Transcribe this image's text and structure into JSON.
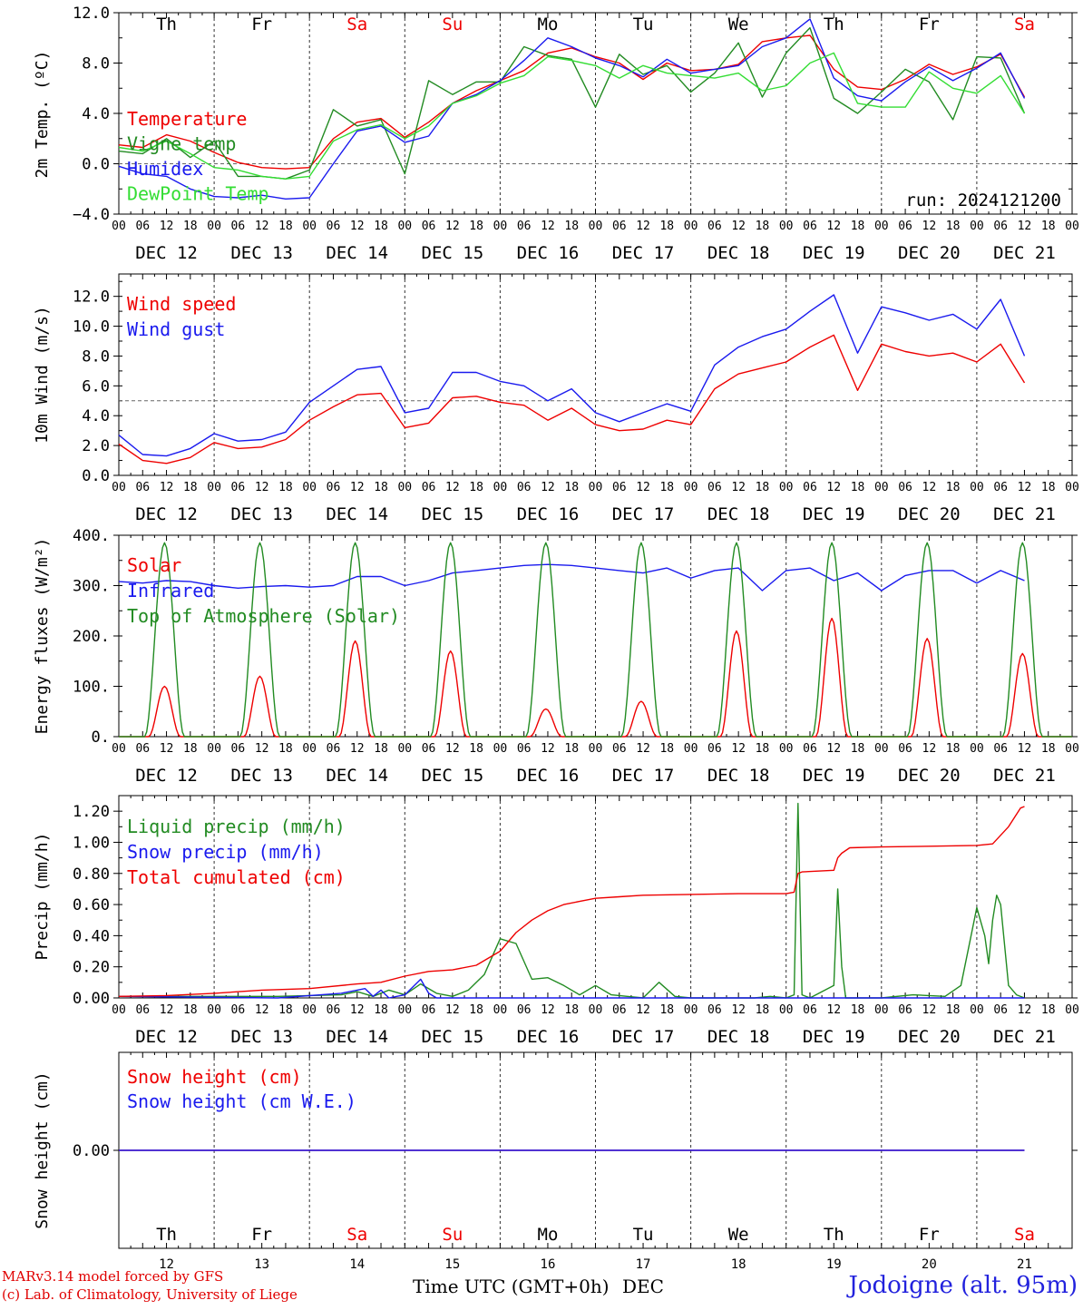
{
  "chart_data": [
    {
      "type": "line",
      "ylabel": "2m Temp. (ºC)",
      "ylim": [
        -4.0,
        12.0
      ],
      "yticks": [
        "-4.0",
        "0.0",
        "4.0",
        "8.0",
        "12.0"
      ],
      "reference_line": 0.0,
      "annotation": "run: 2024121200",
      "x_unit": "hours since DEC 12 00 UTC",
      "series": [
        {
          "name": "Temperature",
          "color": "#ee0000",
          "x": [
            0,
            6,
            12,
            18,
            24,
            30,
            36,
            42,
            48,
            54,
            60,
            66,
            72,
            78,
            84,
            90,
            96,
            102,
            108,
            114,
            120,
            126,
            132,
            138,
            144,
            150,
            156,
            162,
            168,
            174,
            180,
            186,
            192,
            198,
            204,
            210,
            216,
            222,
            228
          ],
          "y": [
            1.5,
            1.3,
            2.3,
            1.8,
            0.9,
            0.1,
            -0.3,
            -0.4,
            -0.3,
            2.0,
            3.3,
            3.6,
            2.1,
            3.3,
            4.8,
            5.8,
            6.6,
            7.4,
            8.8,
            9.2,
            8.5,
            8.0,
            6.7,
            8.0,
            7.4,
            7.5,
            7.9,
            9.7,
            10.0,
            10.2,
            7.5,
            6.1,
            5.9,
            6.7,
            7.9,
            7.1,
            7.7,
            8.7,
            5.3
          ]
        },
        {
          "name": "Vigne temp",
          "color": "#228b22",
          "x": [
            0,
            6,
            12,
            18,
            24,
            30,
            36,
            42,
            48,
            54,
            60,
            66,
            72,
            78,
            84,
            90,
            96,
            102,
            108,
            114,
            120,
            126,
            132,
            138,
            144,
            150,
            156,
            162,
            168,
            174,
            180,
            186,
            192,
            198,
            204,
            210,
            216,
            222,
            228
          ],
          "y": [
            1.0,
            0.8,
            2.0,
            0.5,
            1.8,
            -1.0,
            -1.0,
            -1.2,
            -0.5,
            4.3,
            3.0,
            3.5,
            -0.8,
            6.6,
            5.5,
            6.5,
            6.5,
            9.3,
            8.6,
            8.3,
            4.5,
            8.7,
            7.1,
            7.8,
            5.7,
            7.2,
            9.6,
            5.3,
            8.8,
            10.8,
            5.2,
            4.0,
            5.7,
            7.5,
            6.5,
            3.5,
            8.5,
            8.4,
            4.0
          ]
        },
        {
          "name": "Humidex",
          "color": "#1a1aee",
          "x": [
            0,
            6,
            12,
            18,
            24,
            30,
            36,
            42,
            48,
            54,
            60,
            66,
            72,
            78,
            84,
            90,
            96,
            102,
            108,
            114,
            120,
            126,
            132,
            138,
            144,
            150,
            156,
            162,
            168,
            174,
            180,
            186,
            192,
            198,
            204,
            210,
            216,
            222,
            228
          ],
          "y": [
            -0.2,
            -0.8,
            -1.0,
            -2.0,
            -2.6,
            -2.7,
            -2.5,
            -2.8,
            -2.7,
            0.0,
            2.6,
            3.0,
            1.7,
            2.2,
            4.8,
            5.5,
            6.6,
            8.2,
            10.0,
            9.3,
            8.4,
            7.8,
            6.9,
            8.3,
            7.2,
            7.5,
            7.8,
            9.3,
            10.0,
            11.5,
            6.8,
            5.4,
            5.0,
            6.5,
            7.7,
            6.6,
            7.6,
            8.8,
            5.2
          ]
        },
        {
          "name": "DewPoint Temp",
          "color": "#33dd33",
          "x": [
            0,
            6,
            12,
            18,
            24,
            30,
            36,
            42,
            48,
            54,
            60,
            66,
            72,
            78,
            84,
            90,
            96,
            102,
            108,
            114,
            120,
            126,
            132,
            138,
            144,
            150,
            156,
            162,
            168,
            174,
            180,
            186,
            192,
            198,
            204,
            210,
            216,
            222,
            228
          ],
          "y": [
            1.3,
            1.0,
            1.8,
            0.8,
            -0.3,
            -0.5,
            -1.0,
            -1.2,
            -1.0,
            1.8,
            2.7,
            3.1,
            2.0,
            3.0,
            4.8,
            5.4,
            6.4,
            7.0,
            8.5,
            8.2,
            7.8,
            6.8,
            7.8,
            7.2,
            7.0,
            6.8,
            7.2,
            5.8,
            6.2,
            8.0,
            8.8,
            4.8,
            4.5,
            4.5,
            7.3,
            6.0,
            5.6,
            7.0,
            4.0
          ]
        }
      ]
    },
    {
      "type": "line",
      "ylabel": "10m Wind (m/s)",
      "ylim": [
        0.0,
        13.5
      ],
      "yticks": [
        "0.0",
        "2.0",
        "4.0",
        "6.0",
        "8.0",
        "10.0",
        "12.0"
      ],
      "reference_line": 5.0,
      "x_unit": "hours since DEC 12 00 UTC",
      "series": [
        {
          "name": "Wind speed",
          "color": "#ee0000",
          "x": [
            0,
            6,
            12,
            18,
            24,
            30,
            36,
            42,
            48,
            54,
            60,
            66,
            72,
            78,
            84,
            90,
            96,
            102,
            108,
            114,
            120,
            126,
            132,
            138,
            144,
            150,
            156,
            162,
            168,
            174,
            180,
            186,
            192,
            198,
            204,
            210,
            216,
            222,
            228
          ],
          "y": [
            2.1,
            1.0,
            0.8,
            1.2,
            2.2,
            1.8,
            1.9,
            2.4,
            3.7,
            4.6,
            5.4,
            5.5,
            3.2,
            3.5,
            5.2,
            5.3,
            4.9,
            4.7,
            3.7,
            4.5,
            3.4,
            3.0,
            3.1,
            3.7,
            3.4,
            5.8,
            6.8,
            7.2,
            7.6,
            8.6,
            9.4,
            5.7,
            8.8,
            8.3,
            8.0,
            8.2,
            7.6,
            8.8,
            6.2
          ]
        },
        {
          "name": "Wind gust",
          "color": "#1a1aee",
          "x": [
            0,
            6,
            12,
            18,
            24,
            30,
            36,
            42,
            48,
            54,
            60,
            66,
            72,
            78,
            84,
            90,
            96,
            102,
            108,
            114,
            120,
            126,
            132,
            138,
            144,
            150,
            156,
            162,
            168,
            174,
            180,
            186,
            192,
            198,
            204,
            210,
            216,
            222,
            228
          ],
          "y": [
            2.7,
            1.4,
            1.3,
            1.8,
            2.8,
            2.3,
            2.4,
            2.9,
            4.9,
            6.0,
            7.1,
            7.3,
            4.2,
            4.5,
            6.9,
            6.9,
            6.3,
            6.0,
            5.0,
            5.8,
            4.2,
            3.6,
            4.2,
            4.8,
            4.3,
            7.4,
            8.6,
            9.3,
            9.8,
            11.0,
            12.1,
            8.2,
            11.3,
            10.9,
            10.4,
            10.8,
            9.8,
            11.8,
            8.0
          ]
        }
      ]
    },
    {
      "type": "line",
      "ylabel": "Energy fluxes (W/m²)",
      "ylim": [
        0,
        400
      ],
      "yticks": [
        "0.",
        "100.",
        "200.",
        "300.",
        "400."
      ],
      "x_unit": "hours since DEC 12 00 UTC",
      "series": [
        {
          "name": "Solar",
          "color": "#ee0000",
          "daily_peak_hour_utc": 11.5,
          "daily_peaks": [
            100,
            120,
            190,
            170,
            55,
            70,
            210,
            235,
            195,
            165
          ]
        },
        {
          "name": "Infrared",
          "color": "#1a1aee",
          "x": [
            0,
            6,
            12,
            18,
            24,
            30,
            36,
            42,
            48,
            54,
            60,
            66,
            72,
            78,
            84,
            90,
            96,
            102,
            108,
            114,
            120,
            126,
            132,
            138,
            144,
            150,
            156,
            162,
            168,
            174,
            180,
            186,
            192,
            198,
            204,
            210,
            216,
            222,
            228
          ],
          "y": [
            308,
            305,
            310,
            308,
            300,
            295,
            298,
            300,
            297,
            300,
            318,
            318,
            300,
            310,
            325,
            330,
            335,
            340,
            342,
            340,
            335,
            330,
            325,
            335,
            315,
            330,
            335,
            290,
            330,
            335,
            310,
            325,
            290,
            320,
            330,
            330,
            305,
            330,
            310
          ]
        },
        {
          "name": "Top of Atmosphere (Solar)",
          "color": "#228b22",
          "daily_peak_hour_utc": 11.5,
          "daily_peak": 385,
          "daylight_hours": [
            6.5,
            16.5
          ]
        }
      ]
    },
    {
      "type": "line",
      "ylabel": "Precip (mm/h)",
      "ylim": [
        0.0,
        1.3
      ],
      "yticks": [
        "0.00",
        "0.20",
        "0.40",
        "0.60",
        "0.80",
        "1.00",
        "1.20"
      ],
      "x_unit": "hours since DEC 12 00 UTC",
      "series": [
        {
          "name": "Liquid precip (mm/h)",
          "color": "#228b22",
          "x": [
            0,
            20,
            40,
            56,
            60,
            64,
            68,
            72,
            76,
            80,
            84,
            88,
            92,
            96,
            100,
            104,
            108,
            112,
            116,
            120,
            124,
            128,
            132,
            136,
            140,
            144,
            148,
            152,
            156,
            160,
            164,
            168,
            170,
            171,
            172,
            174,
            180,
            181,
            182,
            183,
            184,
            186,
            192,
            200,
            208,
            212,
            216,
            218,
            219,
            220,
            221,
            222,
            224,
            226,
            228
          ],
          "y": [
            0.01,
            0.01,
            0.01,
            0.02,
            0.04,
            0.01,
            0.05,
            0.02,
            0.09,
            0.03,
            0.01,
            0.05,
            0.15,
            0.38,
            0.35,
            0.12,
            0.13,
            0.08,
            0.02,
            0.08,
            0.02,
            0.01,
            0.0,
            0.1,
            0.01,
            0.0,
            0.0,
            0.0,
            0.0,
            0.0,
            0.01,
            0.0,
            0.02,
            1.25,
            0.02,
            0.0,
            0.08,
            0.7,
            0.2,
            0.0,
            0.0,
            0.0,
            0.0,
            0.02,
            0.01,
            0.08,
            0.58,
            0.4,
            0.22,
            0.5,
            0.66,
            0.6,
            0.08,
            0.02,
            0.0
          ]
        },
        {
          "name": "Snow precip (mm/h)",
          "color": "#1a1aee",
          "x": [
            0,
            40,
            56,
            62,
            64,
            66,
            68,
            72,
            76,
            78,
            80,
            84,
            100,
            200,
            228
          ],
          "y": [
            0.01,
            0.0,
            0.03,
            0.06,
            0.01,
            0.05,
            0.0,
            0.02,
            0.12,
            0.03,
            0.0,
            0.0,
            0.0,
            0.0,
            0.0
          ]
        },
        {
          "name": "Total cumulated (cm)",
          "color": "#ee0000",
          "x": [
            0,
            12,
            24,
            36,
            48,
            60,
            66,
            72,
            78,
            84,
            90,
            96,
            100,
            104,
            108,
            112,
            116,
            120,
            126,
            132,
            144,
            156,
            168,
            170,
            171,
            172,
            176,
            180,
            181,
            182,
            184,
            192,
            204,
            216,
            220,
            224,
            227,
            228
          ],
          "y": [
            0.01,
            0.015,
            0.03,
            0.05,
            0.06,
            0.09,
            0.1,
            0.14,
            0.17,
            0.18,
            0.21,
            0.3,
            0.42,
            0.5,
            0.56,
            0.6,
            0.62,
            0.64,
            0.65,
            0.66,
            0.665,
            0.67,
            0.67,
            0.68,
            0.8,
            0.81,
            0.815,
            0.82,
            0.9,
            0.93,
            0.965,
            0.97,
            0.975,
            0.98,
            0.99,
            1.1,
            1.22,
            1.23
          ]
        }
      ]
    },
    {
      "type": "line",
      "ylabel": "Snow height (cm)",
      "ylim": [
        -1.0,
        1.0
      ],
      "yticks": [
        "0.00"
      ],
      "x_unit": "hours since DEC 12 00 UTC",
      "series": [
        {
          "name": "Snow height (cm)",
          "color": "#ee0000",
          "x": [
            0,
            228
          ],
          "y": [
            0.0,
            0.0
          ]
        },
        {
          "name": "Snow height (cm W.E.)",
          "color": "#1a1aee",
          "x": [
            0,
            228
          ],
          "y": [
            0.0,
            0.0
          ]
        }
      ]
    }
  ],
  "days": [
    {
      "weekday": "Th",
      "date": "DEC 12",
      "num": "12",
      "weekend": false
    },
    {
      "weekday": "Fr",
      "date": "DEC 13",
      "num": "13",
      "weekend": false
    },
    {
      "weekday": "Sa",
      "date": "DEC 14",
      "num": "14",
      "weekend": true
    },
    {
      "weekday": "Su",
      "date": "DEC 15",
      "num": "15",
      "weekend": true
    },
    {
      "weekday": "Mo",
      "date": "DEC 16",
      "num": "16",
      "weekend": false
    },
    {
      "weekday": "Tu",
      "date": "DEC 17",
      "num": "17",
      "weekend": false
    },
    {
      "weekday": "We",
      "date": "DEC 18",
      "num": "18",
      "weekend": false
    },
    {
      "weekday": "Th",
      "date": "DEC 19",
      "num": "19",
      "weekend": false
    },
    {
      "weekday": "Fr",
      "date": "DEC 20",
      "num": "20",
      "weekend": false
    },
    {
      "weekday": "Sa",
      "date": "DEC 21",
      "num": "21",
      "weekend": true
    }
  ],
  "hour_ticks": [
    "00",
    "06",
    "12",
    "18"
  ],
  "xlabel": "Time UTC (GMT+0h)",
  "xlabel_month": "DEC",
  "credit_line1": "MARv3.14 model forced by GFS",
  "credit_line2": "(c) Lab. of Climatology, University of Liege",
  "station": "Jodoigne (alt. 95m)",
  "colors": {
    "weekend": "#ee0000",
    "axis": "#000000",
    "grid": "#555555"
  }
}
